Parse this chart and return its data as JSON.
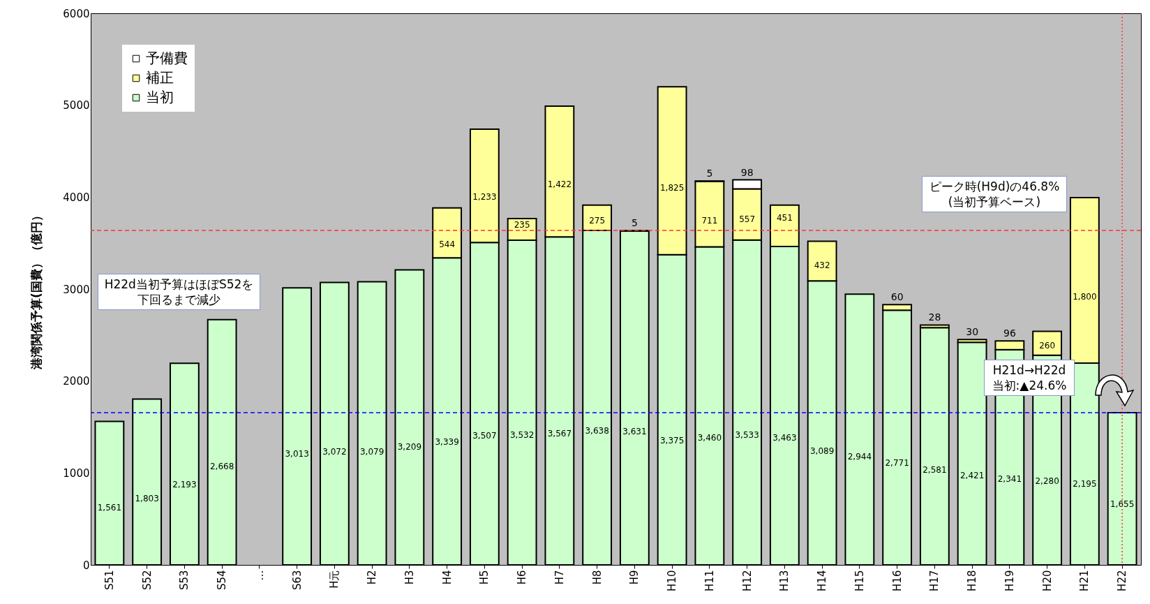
{
  "chart_data": {
    "type": "bar",
    "stacked": true,
    "ylabel": "港湾関係予算(国費）（億円）",
    "categories": [
      "S51",
      "S52",
      "S53",
      "S54",
      "…",
      "S63",
      "H元",
      "H2",
      "H3",
      "H4",
      "H5",
      "H6",
      "H7",
      "H8",
      "H9",
      "H10",
      "H11",
      "H12",
      "H13",
      "H14",
      "H15",
      "H16",
      "H17",
      "H18",
      "H19",
      "H20",
      "H21",
      "H22"
    ],
    "series": [
      {
        "name": "当初",
        "color": "#ccffcc",
        "values": [
          1561,
          1803,
          2193,
          2668,
          null,
          3013,
          3072,
          3079,
          3209,
          3339,
          3507,
          3532,
          3567,
          3638,
          3631,
          3375,
          3460,
          3533,
          3463,
          3089,
          2944,
          2771,
          2581,
          2421,
          2341,
          2280,
          2195,
          1655
        ],
        "value_labels": [
          "1,561",
          "1,803",
          "2,193",
          "2,668",
          null,
          "3,013",
          "3,072",
          "3,079",
          "3,209",
          "3,339",
          "3,507",
          "3,532",
          "3,567",
          "3,638",
          "3,631",
          "3,375",
          "3,460",
          "3,533",
          "3,463",
          "3,089",
          "2,944",
          "2,771",
          "2,581",
          "2,421",
          "2,341",
          "2,280",
          "2,195",
          "1,655"
        ]
      },
      {
        "name": "補正",
        "color": "#ffff99",
        "values": [
          null,
          null,
          null,
          null,
          null,
          null,
          null,
          null,
          null,
          544,
          1233,
          235,
          1422,
          275,
          5,
          1825,
          711,
          557,
          451,
          432,
          null,
          60,
          28,
          30,
          96,
          260,
          1800,
          null
        ],
        "value_labels": [
          null,
          null,
          null,
          null,
          null,
          null,
          null,
          null,
          null,
          "544",
          "1,233",
          "235",
          "1,422",
          "275",
          "5",
          "1,825",
          "711",
          "557",
          "451",
          "432",
          null,
          "60",
          "28",
          "30",
          "96",
          "260",
          "1,800",
          null
        ]
      },
      {
        "name": "予備費",
        "color": "#ffffff",
        "values": [
          null,
          null,
          null,
          null,
          null,
          null,
          null,
          null,
          null,
          null,
          null,
          null,
          null,
          null,
          null,
          null,
          5,
          98,
          null,
          null,
          null,
          null,
          null,
          null,
          null,
          null,
          null,
          null
        ],
        "value_labels": [
          null,
          null,
          null,
          null,
          null,
          null,
          null,
          null,
          null,
          null,
          null,
          null,
          null,
          null,
          null,
          null,
          "5",
          "98",
          null,
          null,
          null,
          null,
          null,
          null,
          null,
          null,
          null,
          null
        ]
      }
    ],
    "ylim": [
      0,
      6000
    ],
    "yticks": [
      0,
      1000,
      2000,
      3000,
      4000,
      5000,
      6000
    ],
    "grid": false,
    "legend": "top left",
    "ref_lines": [
      {
        "axis": "y",
        "value": 3638,
        "color": "#ff3333",
        "line_style": "dashed"
      },
      {
        "axis": "y",
        "value": 1655,
        "color": "#0000ff",
        "line_style": "dashed"
      },
      {
        "axis": "x",
        "value": "H22",
        "color": "#ff3333",
        "line_style": "dotted"
      }
    ],
    "annotations": [
      "H22d当初予算はほぼS52を下回るまで減少",
      "ピーク時(H9d)の46.8%(当初予算ベース)",
      "H21d→H22d当初:▲24.6%"
    ]
  }
}
